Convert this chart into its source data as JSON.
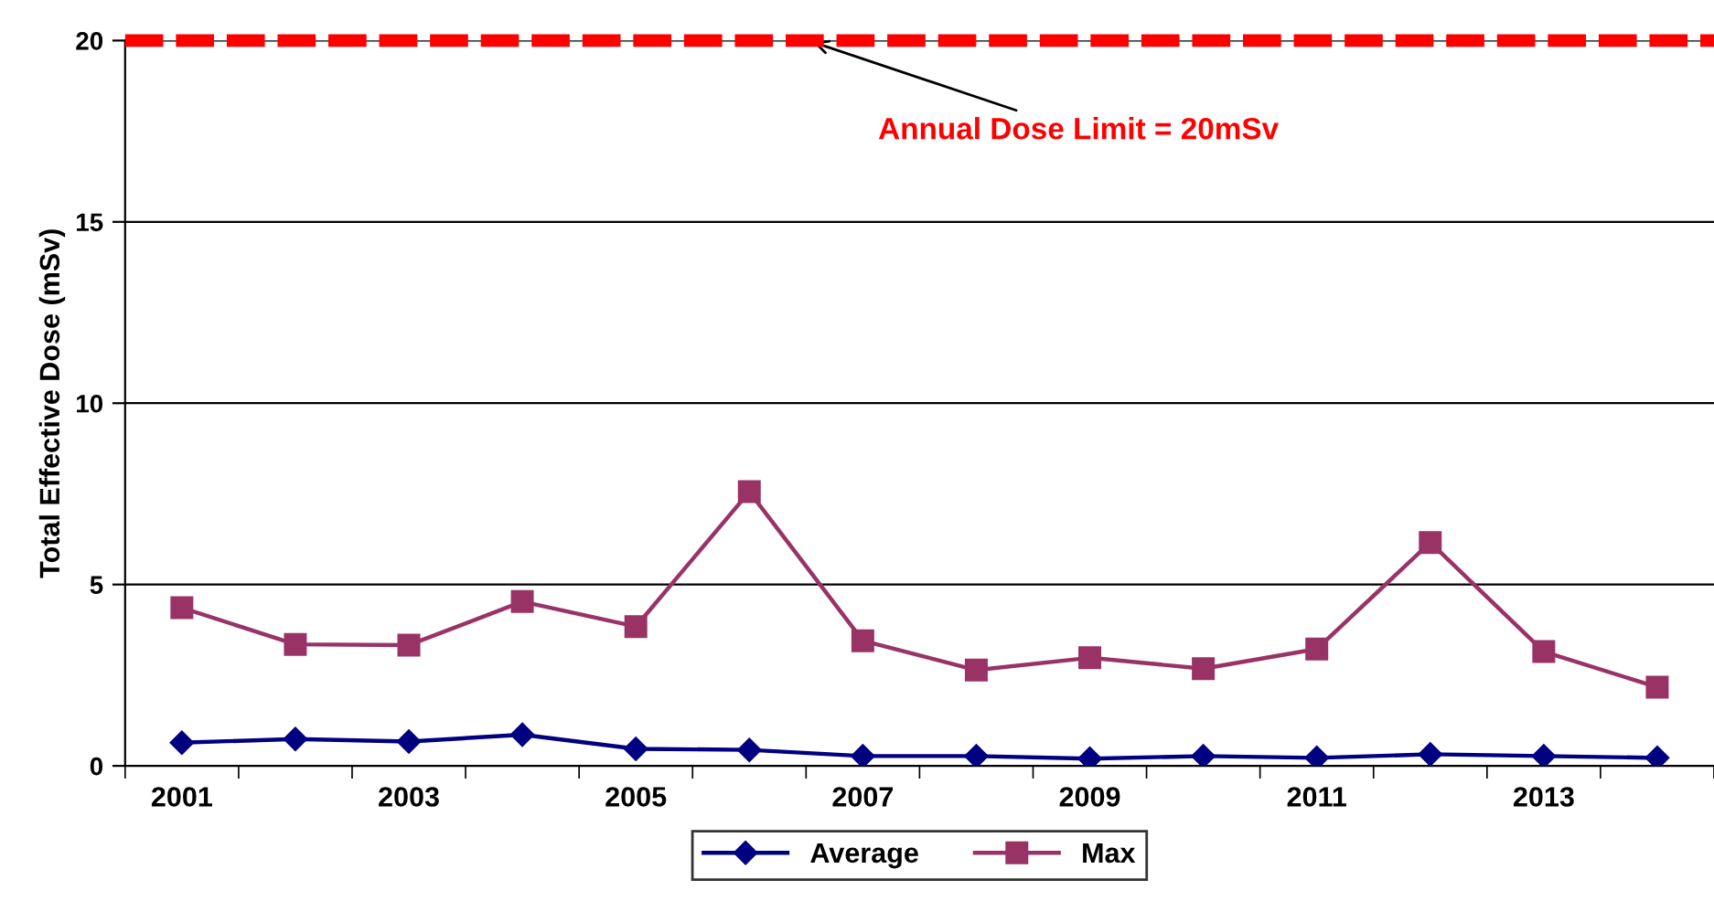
{
  "chart_data": {
    "type": "line",
    "ylabel": "Total Effective Dose (mSv)",
    "categories": [
      "2001",
      null,
      "2003",
      null,
      "2005",
      null,
      "2007",
      null,
      "2009",
      null,
      "2011",
      null,
      "2013",
      null
    ],
    "series": [
      {
        "name": "Average",
        "color": "#000080",
        "marker": "diamond",
        "values": [
          0.64,
          0.74,
          0.67,
          0.86,
          0.47,
          0.44,
          0.27,
          0.27,
          0.2,
          0.27,
          0.22,
          0.32,
          0.27,
          0.22
        ]
      },
      {
        "name": "Max",
        "color": "#993366",
        "marker": "square",
        "values": [
          4.36,
          3.35,
          3.33,
          4.53,
          3.84,
          7.56,
          3.45,
          2.64,
          2.98,
          2.68,
          3.22,
          6.16,
          3.15,
          2.17
        ]
      }
    ],
    "ylim": [
      0,
      20
    ],
    "yticks": [
      0,
      5,
      10,
      15,
      20
    ],
    "grid": "y",
    "legend": "bottom",
    "line_style": "solid",
    "ref_lines": [
      {
        "axis": "y",
        "value": 20,
        "label": "Annual Dose Limit = 20mSv",
        "color": "#ff0000",
        "line_style": "dashed"
      }
    ]
  }
}
